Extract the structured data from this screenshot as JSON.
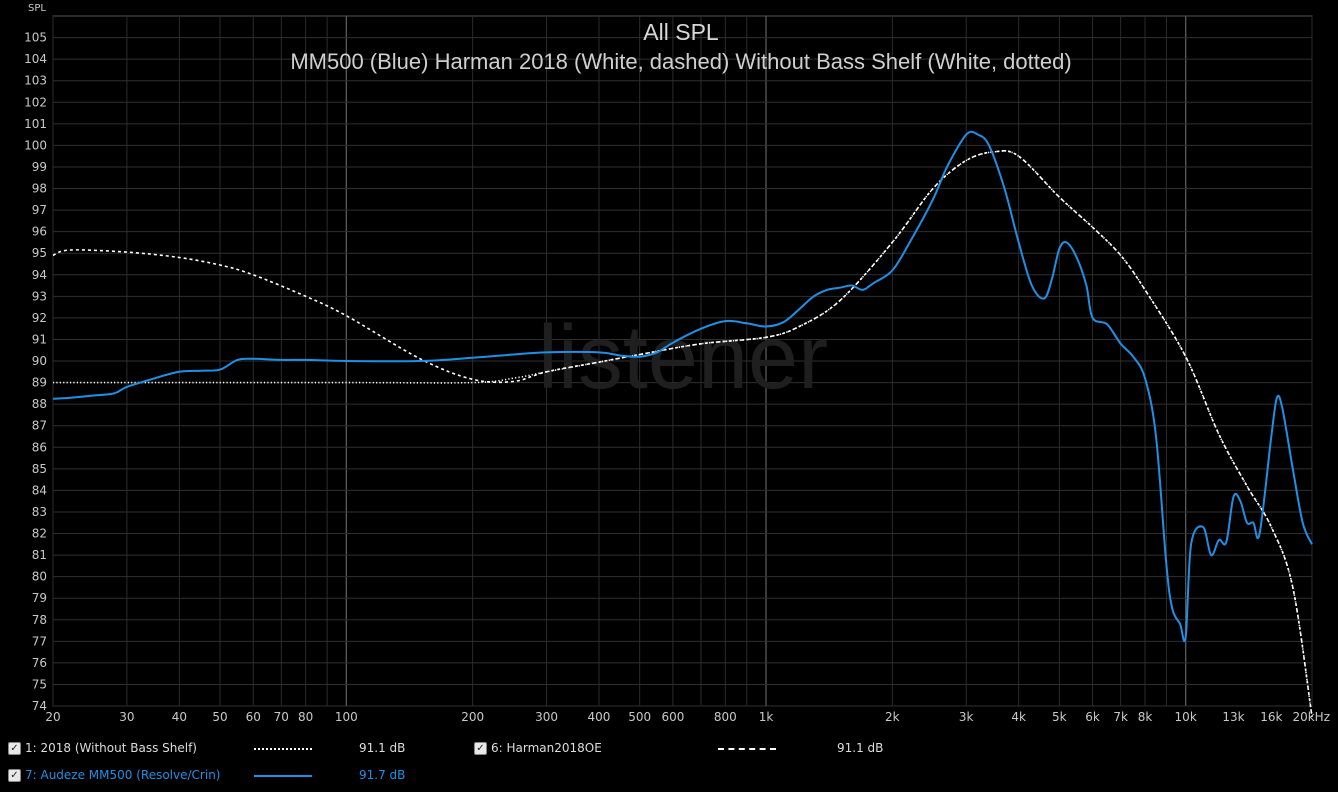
{
  "chart_data": {
    "type": "line",
    "title": "All SPL",
    "subtitle": "MM500 (Blue) Harman 2018 (White, dashed) Without Bass Shelf (White, dotted)",
    "ylabel": "SPL",
    "xlabel": "",
    "watermark": "listener",
    "x_scale": "log",
    "xlim": [
      20,
      20000
    ],
    "ylim": [
      74,
      106
    ],
    "grid": true,
    "x_ticks": [
      {
        "v": 20,
        "label": "20"
      },
      {
        "v": 30,
        "label": "30"
      },
      {
        "v": 40,
        "label": "40"
      },
      {
        "v": 50,
        "label": "50"
      },
      {
        "v": 60,
        "label": "60"
      },
      {
        "v": 70,
        "label": "70"
      },
      {
        "v": 80,
        "label": "80"
      },
      {
        "v": 100,
        "label": "100"
      },
      {
        "v": 200,
        "label": "200"
      },
      {
        "v": 300,
        "label": "300"
      },
      {
        "v": 400,
        "label": "400"
      },
      {
        "v": 500,
        "label": "500"
      },
      {
        "v": 600,
        "label": "600"
      },
      {
        "v": 800,
        "label": "800"
      },
      {
        "v": 1000,
        "label": "1k"
      },
      {
        "v": 2000,
        "label": "2k"
      },
      {
        "v": 3000,
        "label": "3k"
      },
      {
        "v": 4000,
        "label": "4k"
      },
      {
        "v": 5000,
        "label": "5k"
      },
      {
        "v": 6000,
        "label": "6k"
      },
      {
        "v": 7000,
        "label": "7k"
      },
      {
        "v": 8000,
        "label": "8k"
      },
      {
        "v": 10000,
        "label": "10k"
      },
      {
        "v": 13000,
        "label": "13k"
      },
      {
        "v": 16000,
        "label": "16k"
      },
      {
        "v": 20000,
        "label": "20kHz"
      }
    ],
    "y_ticks": [
      "74",
      "75",
      "76",
      "77",
      "78",
      "79",
      "80",
      "81",
      "82",
      "83",
      "84",
      "85",
      "86",
      "87",
      "88",
      "89",
      "90",
      "91",
      "92",
      "93",
      "94",
      "95",
      "96",
      "97",
      "98",
      "99",
      "100",
      "101",
      "102",
      "103",
      "104",
      "105"
    ],
    "series": [
      {
        "name": "1: 2018 (Without Bass Shelf)",
        "color": "#ffffff",
        "style": "dotted",
        "points": [
          [
            20,
            89
          ],
          [
            100,
            89
          ],
          [
            200,
            89.0
          ],
          [
            250,
            89.2
          ],
          [
            300,
            89.5
          ],
          [
            400,
            89.95
          ],
          [
            500,
            90.3
          ],
          [
            700,
            90.8
          ],
          [
            1000,
            91.1
          ],
          [
            1200,
            91.6
          ],
          [
            1500,
            92.8
          ],
          [
            2000,
            95.5
          ],
          [
            2500,
            98.0
          ],
          [
            3000,
            99.3
          ],
          [
            3500,
            99.7
          ],
          [
            4000,
            99.5
          ],
          [
            5000,
            97.6
          ],
          [
            6000,
            96.2
          ],
          [
            7000,
            94.9
          ],
          [
            8000,
            93.3
          ],
          [
            10000,
            90.2
          ],
          [
            12000,
            86.6
          ],
          [
            14000,
            84.2
          ],
          [
            16000,
            82.3
          ],
          [
            18000,
            79.5
          ],
          [
            20000,
            73.5
          ]
        ]
      },
      {
        "name": "6: Harman2018OE",
        "color": "#ffffff",
        "style": "dashed",
        "points": [
          [
            20,
            94.9
          ],
          [
            22,
            95.15
          ],
          [
            30,
            95.05
          ],
          [
            40,
            94.8
          ],
          [
            50,
            94.45
          ],
          [
            60,
            94.0
          ],
          [
            80,
            93.0
          ],
          [
            100,
            92.1
          ],
          [
            150,
            90.1
          ],
          [
            200,
            89.15
          ],
          [
            250,
            89.05
          ],
          [
            300,
            89.5
          ],
          [
            400,
            89.95
          ],
          [
            500,
            90.3
          ],
          [
            700,
            90.8
          ],
          [
            1000,
            91.1
          ],
          [
            1200,
            91.6
          ],
          [
            1500,
            92.8
          ],
          [
            2000,
            95.5
          ],
          [
            2500,
            98.0
          ],
          [
            3000,
            99.3
          ],
          [
            3500,
            99.7
          ],
          [
            4000,
            99.5
          ],
          [
            5000,
            97.6
          ],
          [
            6000,
            96.2
          ],
          [
            7000,
            94.9
          ],
          [
            8000,
            93.3
          ],
          [
            10000,
            90.2
          ],
          [
            12000,
            86.6
          ],
          [
            14000,
            84.2
          ],
          [
            16000,
            82.3
          ],
          [
            18000,
            79.5
          ],
          [
            20000,
            73.5
          ]
        ]
      },
      {
        "name": "7: Audeze MM500 (Resolve/Crin)",
        "color": "#1e90e6",
        "style": "solid",
        "points": [
          [
            20,
            88.25
          ],
          [
            22,
            88.3
          ],
          [
            25,
            88.4
          ],
          [
            28,
            88.5
          ],
          [
            30,
            88.8
          ],
          [
            35,
            89.2
          ],
          [
            40,
            89.5
          ],
          [
            45,
            89.55
          ],
          [
            50,
            89.6
          ],
          [
            55,
            90.05
          ],
          [
            60,
            90.1
          ],
          [
            70,
            90.05
          ],
          [
            80,
            90.05
          ],
          [
            100,
            90.0
          ],
          [
            150,
            90.0
          ],
          [
            200,
            90.15
          ],
          [
            250,
            90.3
          ],
          [
            300,
            90.4
          ],
          [
            400,
            90.4
          ],
          [
            450,
            90.25
          ],
          [
            500,
            90.2
          ],
          [
            550,
            90.4
          ],
          [
            600,
            90.85
          ],
          [
            700,
            91.5
          ],
          [
            800,
            91.85
          ],
          [
            900,
            91.75
          ],
          [
            1000,
            91.6
          ],
          [
            1100,
            91.8
          ],
          [
            1200,
            92.4
          ],
          [
            1300,
            93.0
          ],
          [
            1400,
            93.3
          ],
          [
            1500,
            93.4
          ],
          [
            1600,
            93.5
          ],
          [
            1700,
            93.3
          ],
          [
            1800,
            93.6
          ],
          [
            2000,
            94.2
          ],
          [
            2200,
            95.5
          ],
          [
            2500,
            97.5
          ],
          [
            2700,
            99.0
          ],
          [
            3000,
            100.5
          ],
          [
            3200,
            100.5
          ],
          [
            3400,
            100.0
          ],
          [
            3700,
            98.0
          ],
          [
            4000,
            95.5
          ],
          [
            4300,
            93.5
          ],
          [
            4600,
            92.9
          ],
          [
            4800,
            93.8
          ],
          [
            5000,
            95.2
          ],
          [
            5200,
            95.5
          ],
          [
            5500,
            94.8
          ],
          [
            5800,
            93.5
          ],
          [
            6000,
            92.0
          ],
          [
            6500,
            91.7
          ],
          [
            7000,
            90.8
          ],
          [
            7500,
            90.2
          ],
          [
            8000,
            89.2
          ],
          [
            8500,
            86.5
          ],
          [
            9000,
            80.5
          ],
          [
            9300,
            78.5
          ],
          [
            9700,
            77.8
          ],
          [
            10000,
            77.2
          ],
          [
            10300,
            81.5
          ],
          [
            11000,
            82.3
          ],
          [
            11500,
            81.0
          ],
          [
            12000,
            81.7
          ],
          [
            12500,
            81.6
          ],
          [
            13000,
            83.7
          ],
          [
            13500,
            83.5
          ],
          [
            14000,
            82.5
          ],
          [
            14500,
            82.5
          ],
          [
            15000,
            82.0
          ],
          [
            16000,
            86.5
          ],
          [
            16500,
            88.3
          ],
          [
            17000,
            87.8
          ],
          [
            18000,
            85.0
          ],
          [
            19000,
            82.5
          ],
          [
            20000,
            81.5
          ]
        ]
      }
    ]
  },
  "legend": [
    {
      "id": "cb1",
      "checkbox": "✓",
      "label": "1: 2018 (Without Bass Shelf)",
      "value": "91.1 dB",
      "color": "#ffffff",
      "text_color": "#dddddd",
      "dash": "dotted"
    },
    {
      "id": "cb6",
      "checkbox": "✓",
      "label": "6: Harman2018OE",
      "value": "91.1 dB",
      "color": "#ffffff",
      "text_color": "#dddddd",
      "dash": "dashed"
    },
    {
      "id": "cb7",
      "checkbox": "✓",
      "label": "7: Audeze MM500 (Resolve/Crin)",
      "value": "91.7 dB",
      "color": "#1e90e6",
      "text_color": "#1e90e6",
      "dash": "solid"
    }
  ]
}
